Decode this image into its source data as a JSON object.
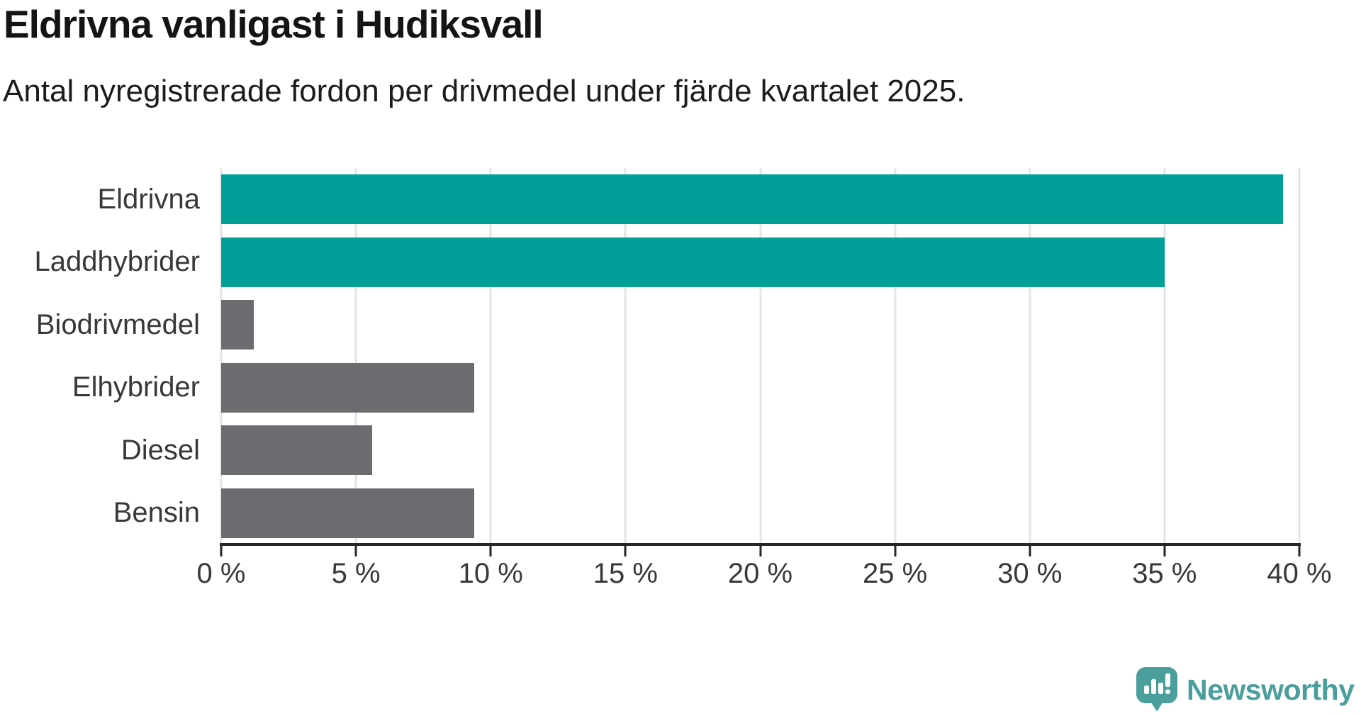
{
  "chart_data": {
    "type": "bar",
    "orientation": "horizontal",
    "title": "Eldrivna vanligast i Hudiksvall",
    "subtitle": "Antal nyregistrerade fordon per drivmedel under fjärde kvartalet 2025.",
    "categories": [
      "Eldrivna",
      "Laddhybrider",
      "Biodrivmedel",
      "Elhybrider",
      "Diesel",
      "Bensin"
    ],
    "values": [
      39.4,
      35.0,
      1.2,
      9.4,
      5.6,
      9.4
    ],
    "unit": "%",
    "bar_colors": [
      "#00a099",
      "#00a099",
      "#6b6b70",
      "#6b6b70",
      "#6b6b70",
      "#6b6b70"
    ],
    "xlim": [
      0,
      40
    ],
    "x_tick_values": [
      0,
      5,
      10,
      15,
      20,
      25,
      30,
      35,
      40
    ],
    "x_tick_labels": [
      "0 %",
      "5 %",
      "10 %",
      "15 %",
      "20 %",
      "25 %",
      "30 %",
      "35 %",
      "40 %"
    ],
    "grid": true,
    "legend": "none",
    "xlabel": "",
    "ylabel": ""
  },
  "colors": {
    "accent_teal": "#00a099",
    "bar_gray": "#6b6b70",
    "gridline": "#e4e4e4",
    "axis": "#262626",
    "label_text": "#383838",
    "title_text": "#141414",
    "brand_teal": "#4a9e9c"
  },
  "branding": {
    "logo_text": "Newsworthy",
    "logo_icon": "chart-speech-bubble-icon"
  }
}
